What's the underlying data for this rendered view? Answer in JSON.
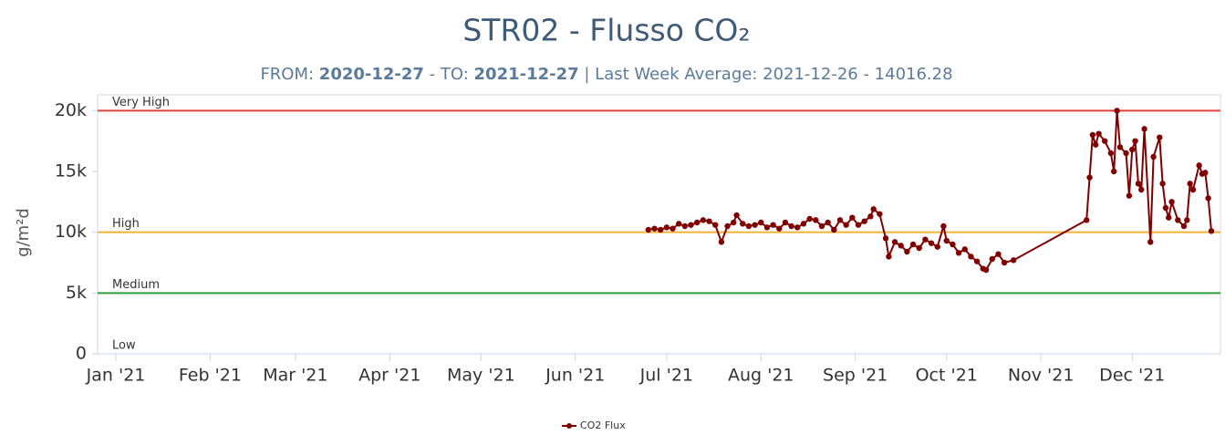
{
  "chart_data": {
    "type": "line",
    "title": "STR02 - Flusso CO₂",
    "subtitle_parts": [
      {
        "text": "FROM: "
      },
      {
        "text": "2020-12-27",
        "bold": true
      },
      {
        "text": " - TO: "
      },
      {
        "text": "2021-12-27",
        "bold": true
      },
      {
        "text": " | Last Week Average: 2021-12-26 - 14016.28"
      }
    ],
    "y_label": "g/m²d",
    "x": [
      175,
      177,
      179,
      181,
      183,
      185,
      187,
      189,
      191,
      193,
      195,
      197,
      199,
      201,
      203,
      204,
      206,
      208,
      210,
      212,
      214,
      216,
      218,
      220,
      222,
      224,
      226,
      228,
      230,
      232,
      234,
      236,
      238,
      240,
      242,
      244,
      246,
      248,
      249,
      251,
      253,
      254,
      256,
      258,
      260,
      262,
      264,
      266,
      268,
      270,
      272,
      273,
      275,
      277,
      279,
      281,
      283,
      285,
      286,
      288,
      290,
      292,
      295,
      319,
      320,
      321,
      322,
      323,
      325,
      327,
      328,
      329,
      330,
      332,
      333,
      334,
      335,
      336,
      337,
      338,
      340,
      341,
      343,
      344,
      345,
      346,
      347,
      349,
      351,
      352,
      353,
      354,
      356,
      357,
      358,
      359,
      360
    ],
    "series": [
      {
        "name": "CO2 Flux",
        "color": "#800000",
        "values": [
          10200,
          10300,
          10200,
          10400,
          10300,
          10700,
          10500,
          10600,
          10800,
          11000,
          10900,
          10600,
          9200,
          10500,
          10800,
          11400,
          10700,
          10500,
          10600,
          10800,
          10400,
          10600,
          10300,
          10800,
          10500,
          10400,
          10700,
          11100,
          11000,
          10500,
          10800,
          10200,
          11000,
          10600,
          11200,
          10600,
          10900,
          11300,
          11900,
          11500,
          9500,
          8000,
          9200,
          8900,
          8400,
          9000,
          8700,
          9400,
          9100,
          8800,
          10500,
          9300,
          9000,
          8300,
          8600,
          8000,
          7600,
          7000,
          6900,
          7800,
          8200,
          7500,
          7700,
          11000,
          14500,
          18000,
          17200,
          18100,
          17500,
          16500,
          15000,
          20000,
          17000,
          16500,
          13000,
          16800,
          17500,
          14000,
          13500,
          18500,
          9200,
          16200,
          17800,
          14000,
          12000,
          11200,
          12500,
          11000,
          10500,
          11000,
          14000,
          13500,
          15500,
          14800,
          14900,
          12800,
          10100
        ]
      }
    ],
    "xlim": [
      -6,
      363
    ],
    "xticks": [
      {
        "value": 0,
        "label": "Jan '21"
      },
      {
        "value": 31,
        "label": "Feb '21"
      },
      {
        "value": 59,
        "label": "Mar '21"
      },
      {
        "value": 90,
        "label": "Apr '21"
      },
      {
        "value": 120,
        "label": "May '21"
      },
      {
        "value": 151,
        "label": "Jun '21"
      },
      {
        "value": 181,
        "label": "Jul '21"
      },
      {
        "value": 212,
        "label": "Aug '21"
      },
      {
        "value": 243,
        "label": "Sep '21"
      },
      {
        "value": 273,
        "label": "Oct '21"
      },
      {
        "value": 304,
        "label": "Nov '21"
      },
      {
        "value": 334,
        "label": "Dec '21"
      }
    ],
    "ylim": [
      0,
      21300
    ],
    "yticks": [
      0,
      {
        "value": 5000,
        "label": "5k"
      },
      {
        "value": 10000,
        "label": "10k"
      },
      {
        "value": 15000,
        "label": "15k"
      },
      {
        "value": 20000,
        "label": "20k"
      }
    ],
    "thresholds": [
      {
        "value": 20000,
        "label": "Very High",
        "color": "#e8413c"
      },
      {
        "value": 10000,
        "label": "High",
        "color": "#f2b233"
      },
      {
        "value": 5000,
        "label": "Medium",
        "color": "#2e9e3a"
      },
      {
        "value": 0,
        "label": "Low"
      }
    ]
  }
}
